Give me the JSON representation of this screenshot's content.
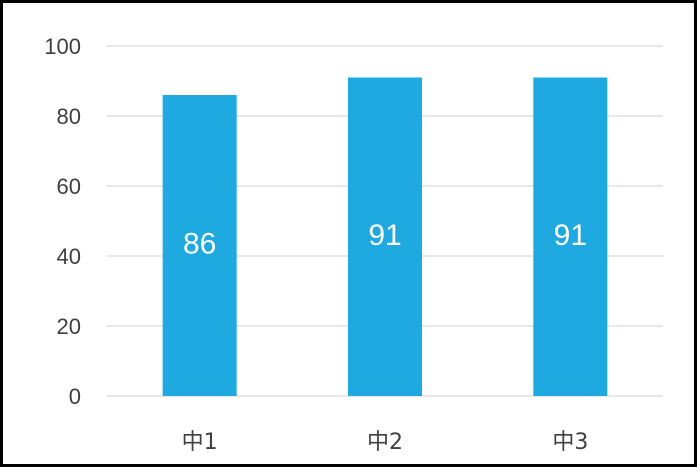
{
  "chart_data": {
    "type": "bar",
    "categories": [
      "中1",
      "中2",
      "中3"
    ],
    "values": [
      86,
      91,
      91
    ],
    "data_labels": [
      "86",
      "91",
      "91"
    ],
    "y_ticks": [
      "0",
      "20",
      "40",
      "60",
      "80",
      "100"
    ],
    "ylim": [
      0,
      100
    ],
    "grid": true,
    "bar_color": "#1eaae1",
    "gridline_color": "#d9d9d9",
    "border_color": "#000000"
  }
}
